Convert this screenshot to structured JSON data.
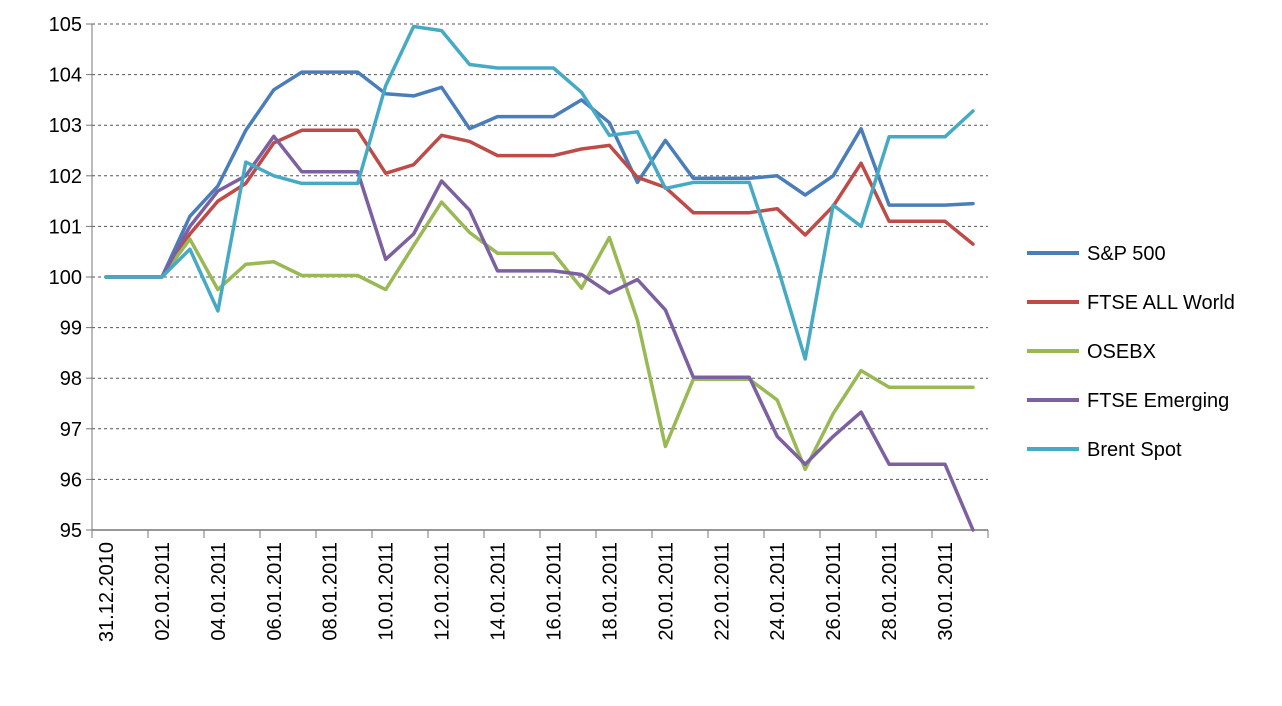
{
  "chart_data": {
    "type": "line",
    "title": "",
    "xlabel": "",
    "ylabel": "",
    "ylim": [
      95,
      105
    ],
    "y_ticks": [
      "95",
      "96",
      "97",
      "98",
      "99",
      "100",
      "101",
      "102",
      "103",
      "104",
      "105"
    ],
    "x_tick_labels": [
      "31.12.2010",
      "02.01.2011",
      "04.01.2011",
      "06.01.2011",
      "08.01.2011",
      "10.01.2011",
      "12.01.2011",
      "14.01.2011",
      "16.01.2011",
      "18.01.2011",
      "20.01.2011",
      "22.01.2011",
      "24.01.2011",
      "26.01.2011",
      "28.01.2011",
      "30.01.2011"
    ],
    "grid": "horizontal dashed",
    "legend_position": "right",
    "dates": [
      "31.12.2010",
      "01.01.2011",
      "02.01.2011",
      "03.01.2011",
      "04.01.2011",
      "05.01.2011",
      "06.01.2011",
      "07.01.2011",
      "08.01.2011",
      "09.01.2011",
      "10.01.2011",
      "11.01.2011",
      "12.01.2011",
      "13.01.2011",
      "14.01.2011",
      "15.01.2011",
      "16.01.2011",
      "17.01.2011",
      "18.01.2011",
      "19.01.2011",
      "20.01.2011",
      "21.01.2011",
      "22.01.2011",
      "23.01.2011",
      "24.01.2011",
      "25.01.2011",
      "26.01.2011",
      "27.01.2011",
      "28.01.2011",
      "29.01.2011",
      "30.01.2011",
      "31.01.2011"
    ],
    "series": [
      {
        "name": "S&P 500",
        "color": "#4a7ebb",
        "values": [
          100,
          100,
          100,
          101.2,
          101.8,
          102.9,
          103.7,
          104.05,
          104.05,
          104.05,
          103.62,
          103.58,
          103.75,
          102.93,
          103.17,
          103.17,
          103.17,
          103.5,
          103.05,
          101.87,
          102.7,
          101.95,
          101.95,
          101.95,
          102.0,
          101.62,
          102.0,
          102.93,
          101.42,
          101.42,
          101.42,
          101.45
        ]
      },
      {
        "name": "FTSE ALL World",
        "color": "#be4b48",
        "values": [
          100,
          100,
          100,
          100.85,
          101.5,
          101.85,
          102.65,
          102.9,
          102.9,
          102.9,
          102.05,
          102.22,
          102.8,
          102.68,
          102.4,
          102.4,
          102.4,
          102.53,
          102.6,
          101.97,
          101.77,
          101.27,
          101.27,
          101.27,
          101.35,
          100.83,
          101.4,
          102.25,
          101.1,
          101.1,
          101.1,
          100.65
        ]
      },
      {
        "name": "OSEBX",
        "color": "#98b954",
        "values": [
          100,
          100,
          100,
          100.75,
          99.75,
          100.25,
          100.3,
          100.03,
          100.03,
          100.03,
          99.75,
          100.62,
          101.48,
          100.88,
          100.47,
          100.47,
          100.47,
          99.78,
          100.78,
          99.15,
          96.65,
          97.98,
          97.98,
          97.98,
          97.57,
          96.2,
          97.3,
          98.15,
          97.82,
          97.82,
          97.82,
          97.82
        ]
      },
      {
        "name": "FTSE Emerging",
        "color": "#7d60a0",
        "values": [
          100,
          100,
          100,
          101.0,
          101.7,
          102.0,
          102.78,
          102.08,
          102.08,
          102.08,
          100.35,
          100.85,
          101.9,
          101.32,
          100.12,
          100.12,
          100.12,
          100.05,
          99.68,
          99.95,
          99.35,
          98.02,
          98.02,
          98.02,
          96.85,
          96.3,
          96.85,
          97.33,
          96.3,
          96.3,
          96.3,
          95.0
        ]
      },
      {
        "name": "Brent Spot",
        "color": "#46aac5",
        "values": [
          100,
          100,
          100,
          100.55,
          99.33,
          102.27,
          102.0,
          101.85,
          101.85,
          101.85,
          103.78,
          104.95,
          104.87,
          104.2,
          104.13,
          104.13,
          104.13,
          103.65,
          102.8,
          102.87,
          101.75,
          101.87,
          101.87,
          101.87,
          100.22,
          98.38,
          101.42,
          101.0,
          102.77,
          102.77,
          102.77,
          103.28
        ]
      }
    ]
  }
}
